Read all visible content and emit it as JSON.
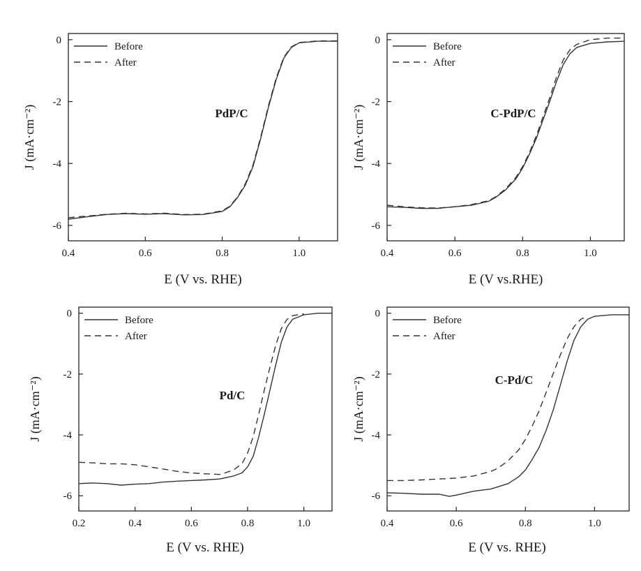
{
  "figure_title": "",
  "chart_data": [
    {
      "type": "line",
      "title": "",
      "annotation": "PdP/C",
      "xlabel": "E (V vs. RHE)",
      "ylabel": "J (mA·cm⁻²)",
      "xlim": [
        0.4,
        1.1
      ],
      "ylim": [
        -6.5,
        0.2
      ],
      "xticks": [
        "0.4",
        "0.6",
        "0.8",
        "1.0"
      ],
      "yticks": [
        "0",
        "-2",
        "-4",
        "-6"
      ],
      "legend_position": "top-left",
      "series": [
        {
          "name": "Before",
          "style": "solid",
          "x": [
            0.4,
            0.45,
            0.5,
            0.55,
            0.6,
            0.65,
            0.7,
            0.75,
            0.8,
            0.82,
            0.84,
            0.86,
            0.88,
            0.9,
            0.92,
            0.94,
            0.96,
            0.98,
            1.0,
            1.05,
            1.1
          ],
          "y": [
            -5.8,
            -5.72,
            -5.65,
            -5.62,
            -5.64,
            -5.62,
            -5.66,
            -5.65,
            -5.55,
            -5.4,
            -5.1,
            -4.7,
            -4.1,
            -3.2,
            -2.2,
            -1.3,
            -0.6,
            -0.25,
            -0.1,
            -0.05,
            -0.05
          ]
        },
        {
          "name": "After",
          "style": "dashed",
          "x": [
            0.4,
            0.45,
            0.5,
            0.55,
            0.6,
            0.65,
            0.7,
            0.75,
            0.8,
            0.82,
            0.84,
            0.86,
            0.88,
            0.9,
            0.92,
            0.94,
            0.96,
            0.98,
            1.0,
            1.05,
            1.1
          ],
          "y": [
            -5.75,
            -5.7,
            -5.64,
            -5.61,
            -5.63,
            -5.61,
            -5.65,
            -5.64,
            -5.53,
            -5.38,
            -5.08,
            -4.66,
            -4.05,
            -3.15,
            -2.15,
            -1.25,
            -0.57,
            -0.23,
            -0.09,
            -0.04,
            -0.04
          ]
        }
      ]
    },
    {
      "type": "line",
      "title": "",
      "annotation": "C-PdP/C",
      "xlabel": "E (V vs.RHE)",
      "ylabel": "J (mA·cm⁻²)",
      "xlim": [
        0.4,
        1.1
      ],
      "ylim": [
        -6.5,
        0.2
      ],
      "xticks": [
        "0.4",
        "0.6",
        "0.8",
        "1.0"
      ],
      "yticks": [
        "0",
        "-2",
        "-4",
        "-6"
      ],
      "legend_position": "top-left",
      "series": [
        {
          "name": "Before",
          "style": "solid",
          "x": [
            0.4,
            0.45,
            0.5,
            0.55,
            0.6,
            0.65,
            0.7,
            0.72,
            0.75,
            0.78,
            0.8,
            0.82,
            0.84,
            0.86,
            0.88,
            0.9,
            0.92,
            0.94,
            0.96,
            1.0,
            1.05,
            1.1
          ],
          "y": [
            -5.4,
            -5.42,
            -5.45,
            -5.45,
            -5.4,
            -5.35,
            -5.22,
            -5.1,
            -4.85,
            -4.5,
            -4.15,
            -3.7,
            -3.2,
            -2.6,
            -2.0,
            -1.35,
            -0.8,
            -0.45,
            -0.25,
            -0.12,
            -0.07,
            -0.05
          ]
        },
        {
          "name": "After",
          "style": "dashed",
          "x": [
            0.4,
            0.45,
            0.5,
            0.55,
            0.6,
            0.65,
            0.7,
            0.72,
            0.75,
            0.78,
            0.8,
            0.82,
            0.84,
            0.86,
            0.88,
            0.9,
            0.92,
            0.94,
            0.96,
            1.0,
            1.05,
            1.1
          ],
          "y": [
            -5.35,
            -5.4,
            -5.43,
            -5.44,
            -5.4,
            -5.33,
            -5.2,
            -5.08,
            -4.82,
            -4.45,
            -4.1,
            -3.65,
            -3.12,
            -2.5,
            -1.88,
            -1.2,
            -0.65,
            -0.32,
            -0.15,
            0.0,
            0.05,
            0.05
          ]
        }
      ]
    },
    {
      "type": "line",
      "title": "",
      "annotation": "Pd/C",
      "xlabel": "E (V vs. RHE)",
      "ylabel": "J (mA·cm⁻²)",
      "xlim": [
        0.2,
        1.1
      ],
      "ylim": [
        -6.5,
        0.2
      ],
      "xticks": [
        "0.2",
        "0.4",
        "0.6",
        "0.8",
        "1.0"
      ],
      "yticks": [
        "0",
        "-2",
        "-4",
        "-6"
      ],
      "legend_position": "top-left",
      "series": [
        {
          "name": "Before",
          "style": "solid",
          "x": [
            0.2,
            0.25,
            0.3,
            0.35,
            0.4,
            0.45,
            0.5,
            0.55,
            0.6,
            0.65,
            0.7,
            0.75,
            0.78,
            0.8,
            0.82,
            0.84,
            0.86,
            0.88,
            0.9,
            0.92,
            0.94,
            0.96,
            1.0,
            1.05,
            1.1
          ],
          "y": [
            -5.6,
            -5.58,
            -5.6,
            -5.65,
            -5.62,
            -5.6,
            -5.55,
            -5.52,
            -5.5,
            -5.48,
            -5.45,
            -5.35,
            -5.25,
            -5.05,
            -4.7,
            -4.05,
            -3.3,
            -2.5,
            -1.7,
            -0.95,
            -0.45,
            -0.2,
            -0.05,
            0.0,
            0.0
          ]
        },
        {
          "name": "After",
          "style": "dashed",
          "x": [
            0.2,
            0.25,
            0.3,
            0.35,
            0.4,
            0.45,
            0.5,
            0.55,
            0.6,
            0.65,
            0.7,
            0.72,
            0.75,
            0.78,
            0.8,
            0.82,
            0.84,
            0.86,
            0.88,
            0.9,
            0.92,
            0.94,
            0.96,
            1.0
          ],
          "y": [
            -4.9,
            -4.92,
            -4.95,
            -4.95,
            -4.98,
            -5.05,
            -5.12,
            -5.2,
            -5.25,
            -5.28,
            -5.3,
            -5.25,
            -5.15,
            -4.95,
            -4.6,
            -4.05,
            -3.3,
            -2.5,
            -1.75,
            -1.05,
            -0.5,
            -0.2,
            -0.08,
            -0.02
          ]
        }
      ]
    },
    {
      "type": "line",
      "title": "",
      "annotation": "C-Pd/C",
      "xlabel": "E (V vs. RHE)",
      "ylabel": "J (mA·cm⁻²)",
      "xlim": [
        0.4,
        1.1
      ],
      "ylim": [
        -6.5,
        0.2
      ],
      "xticks": [
        "0.4",
        "0.6",
        "0.8",
        "1.0"
      ],
      "yticks": [
        "0",
        "-2",
        "-4",
        "-6"
      ],
      "legend_position": "top-left",
      "series": [
        {
          "name": "Before",
          "style": "solid",
          "x": [
            0.4,
            0.45,
            0.5,
            0.55,
            0.58,
            0.6,
            0.65,
            0.7,
            0.75,
            0.78,
            0.8,
            0.82,
            0.84,
            0.86,
            0.88,
            0.9,
            0.92,
            0.94,
            0.96,
            0.98,
            1.0,
            1.05,
            1.1
          ],
          "y": [
            -5.9,
            -5.92,
            -5.95,
            -5.95,
            -6.02,
            -5.98,
            -5.85,
            -5.78,
            -5.6,
            -5.38,
            -5.15,
            -4.8,
            -4.4,
            -3.85,
            -3.2,
            -2.4,
            -1.6,
            -0.9,
            -0.45,
            -0.2,
            -0.1,
            -0.05,
            -0.05
          ]
        },
        {
          "name": "After",
          "style": "dashed",
          "x": [
            0.4,
            0.45,
            0.5,
            0.55,
            0.6,
            0.65,
            0.7,
            0.72,
            0.75,
            0.78,
            0.8,
            0.82,
            0.84,
            0.86,
            0.88,
            0.9,
            0.92,
            0.94,
            0.96,
            0.98
          ],
          "y": [
            -5.5,
            -5.5,
            -5.48,
            -5.45,
            -5.42,
            -5.35,
            -5.2,
            -5.1,
            -4.85,
            -4.5,
            -4.15,
            -3.7,
            -3.2,
            -2.6,
            -2.0,
            -1.4,
            -0.85,
            -0.45,
            -0.2,
            -0.1
          ]
        }
      ]
    }
  ]
}
